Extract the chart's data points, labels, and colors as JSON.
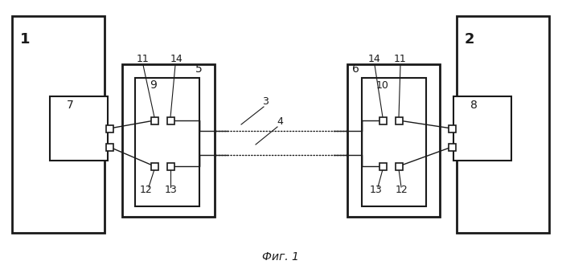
{
  "title": "Фиг. 1",
  "bg_color": "#ffffff",
  "line_color": "#1a1a1a",
  "fig_width": 6.99,
  "fig_height": 3.45,
  "dpi": 100
}
